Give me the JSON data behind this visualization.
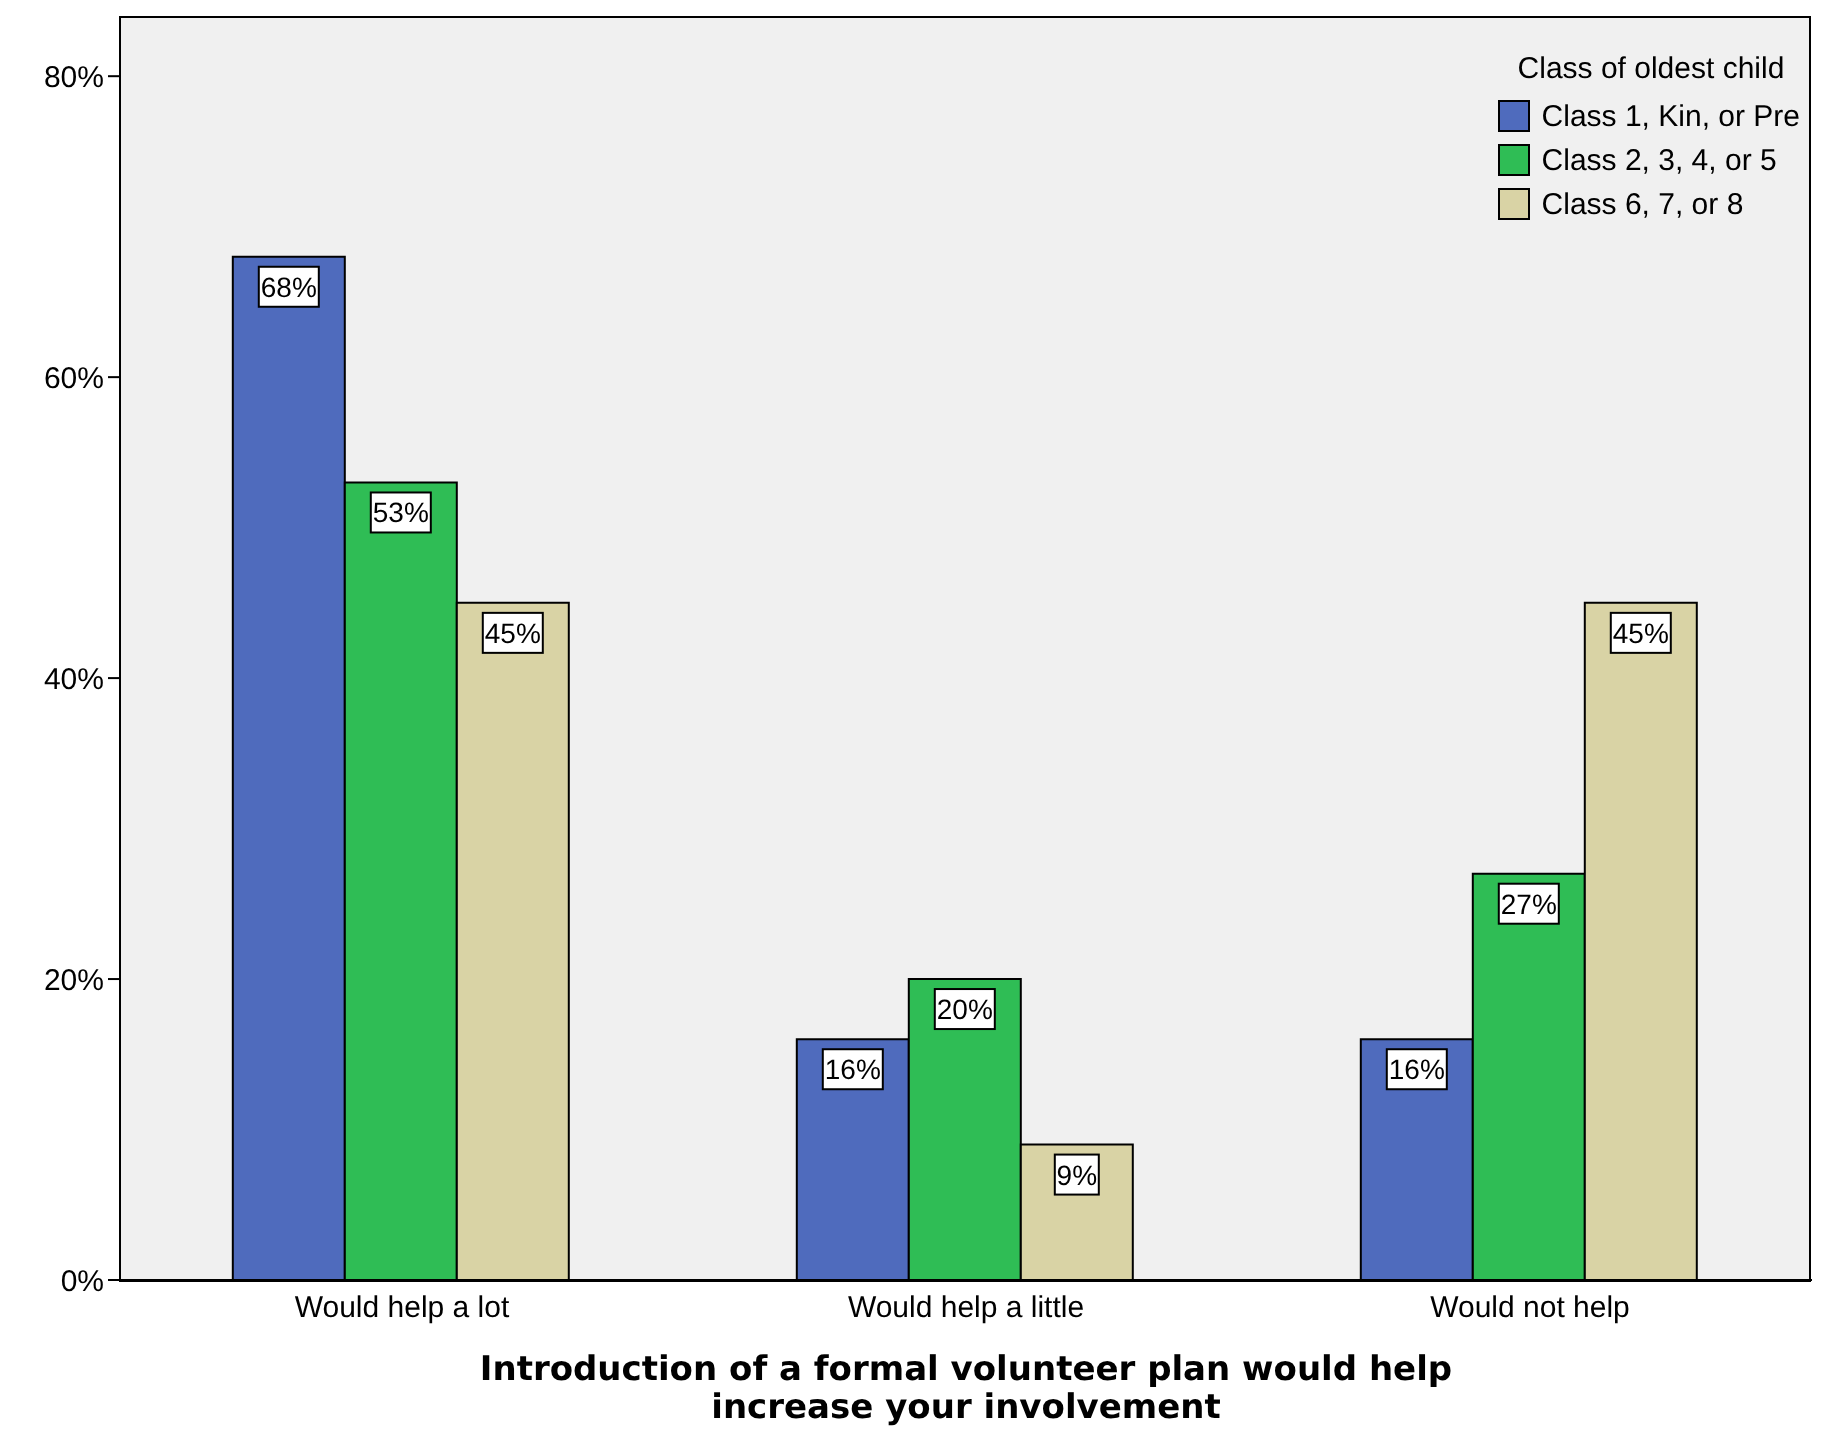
{
  "chart_data": {
    "type": "bar",
    "xlabel": "Introduction of a formal volunteer plan would help increase your involvement",
    "legend_title": "Class of oldest child",
    "legend": "top right",
    "categories": [
      "Would help a lot",
      "Would help a little",
      "Would not help"
    ],
    "series": [
      {
        "name": "Class 1, Kin, or Pre",
        "color": "#4f6bbd",
        "values": [
          68,
          16,
          16
        ],
        "value_labels": [
          "68%",
          "16%",
          "16%"
        ]
      },
      {
        "name": "Class 2, 3, 4, or 5",
        "color": "#2fbd55",
        "values": [
          53,
          20,
          27
        ],
        "value_labels": [
          "53%",
          "20%",
          "27%"
        ]
      },
      {
        "name": "Class 6, 7, or 8",
        "color": "#d9d3a5",
        "values": [
          45,
          9,
          45
        ],
        "value_labels": [
          "45%",
          "9%",
          "45%"
        ]
      }
    ],
    "ylim": [
      0,
      84
    ],
    "yticks": [
      {
        "value": 0,
        "label": "0%"
      },
      {
        "value": 20,
        "label": "20%"
      },
      {
        "value": 40,
        "label": "40%"
      },
      {
        "value": 60,
        "label": "60%"
      },
      {
        "value": 80,
        "label": "80%"
      }
    ]
  }
}
